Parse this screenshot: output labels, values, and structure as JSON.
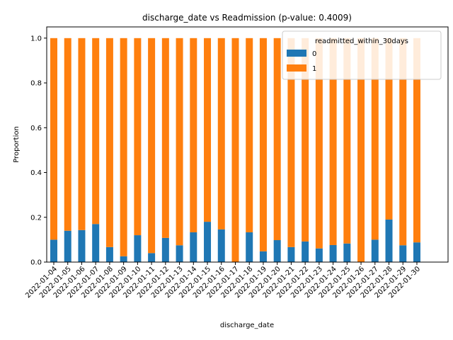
{
  "chart_data": {
    "type": "bar",
    "stacked": true,
    "title": "discharge_date vs Readmission (p-value: 0.4009)",
    "xlabel": "discharge_date",
    "ylabel": "Proportion",
    "ylim": [
      0,
      1.05
    ],
    "yticks": [
      "0.0",
      "0.2",
      "0.4",
      "0.6",
      "0.8",
      "1.0"
    ],
    "grid": false,
    "legend": {
      "title": "readmitted_within_30days",
      "placement": "top-right"
    },
    "categories": [
      "2022-01-04",
      "2022-01-05",
      "2022-01-06",
      "2022-01-07",
      "2022-01-08",
      "2022-01-09",
      "2022-01-10",
      "2022-01-11",
      "2022-01-12",
      "2022-01-13",
      "2022-01-14",
      "2022-01-15",
      "2022-01-16",
      "2022-01-17",
      "2022-01-18",
      "2022-01-19",
      "2022-01-20",
      "2022-01-21",
      "2022-01-22",
      "2022-01-23",
      "2022-01-24",
      "2022-01-25",
      "2022-01-26",
      "2022-01-27",
      "2022-01-28",
      "2022-01-29",
      "2022-01-30"
    ],
    "series": [
      {
        "name": "0",
        "color": "#1f77b4",
        "values": [
          0.1,
          0.14,
          0.143,
          0.17,
          0.067,
          0.026,
          0.12,
          0.04,
          0.108,
          0.075,
          0.133,
          0.18,
          0.146,
          0.0,
          0.133,
          0.048,
          0.098,
          0.067,
          0.092,
          0.061,
          0.076,
          0.083,
          0.0,
          0.1,
          0.19,
          0.075,
          0.088
        ]
      },
      {
        "name": "1",
        "color": "#ff7f0e",
        "values": [
          0.9,
          0.86,
          0.857,
          0.83,
          0.933,
          0.974,
          0.88,
          0.96,
          0.892,
          0.925,
          0.867,
          0.82,
          0.854,
          1.0,
          0.867,
          0.952,
          0.902,
          0.933,
          0.908,
          0.939,
          0.924,
          0.917,
          1.0,
          0.9,
          0.81,
          0.925,
          0.912
        ]
      }
    ]
  }
}
